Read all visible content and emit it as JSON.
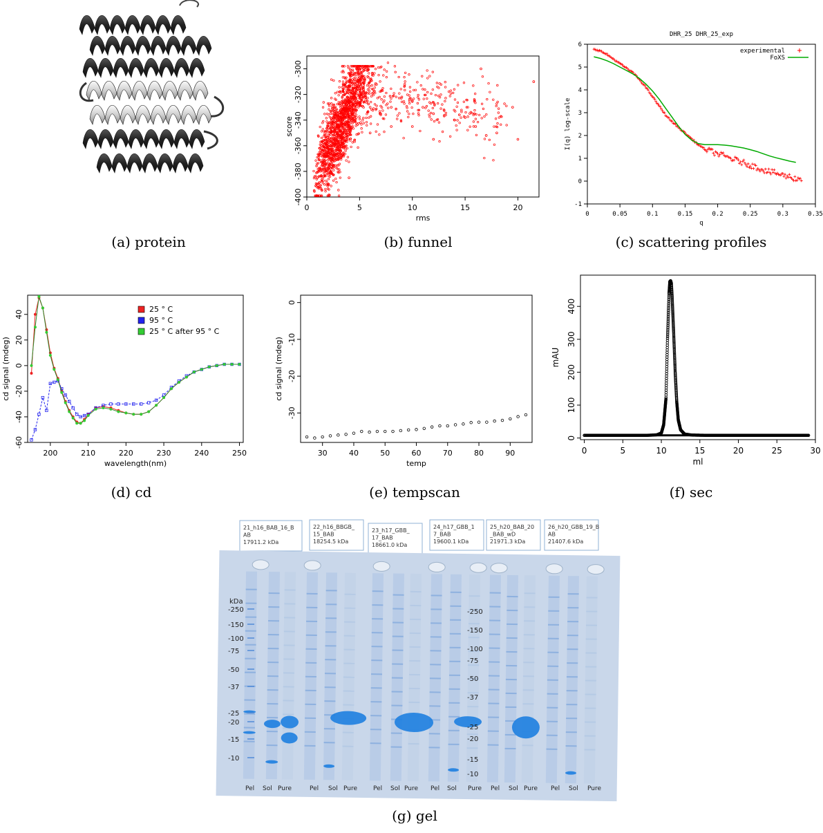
{
  "captions": {
    "a": "(a) protein",
    "b": "(b) funnel",
    "c": "(c) scattering profiles",
    "d": "(d) cd",
    "e": "(e) tempscan",
    "f": "(f) sec",
    "g": "(g) gel"
  },
  "colors": {
    "funnel_points": "#ff0000",
    "experimental": "#ff0000",
    "foxs": "#00aa00",
    "cd_25": "#ee2222",
    "cd_95": "#2222ee",
    "cd_25_after": "#33cc33",
    "gel_bg": "#c9d7ea",
    "gel_band": "#1e7fe0"
  },
  "chart_data": [
    {
      "id": "funnel",
      "type": "scatter",
      "xlabel": "rms",
      "ylabel": "score",
      "xlim": [
        0,
        22
      ],
      "ylim": [
        -400,
        -290
      ],
      "xticks": [
        0,
        5,
        10,
        15,
        20
      ],
      "yticks": [
        -400,
        -380,
        -360,
        -340,
        -320,
        -300
      ],
      "approx_points": [
        [
          0.7,
          -395
        ],
        [
          1,
          -385
        ],
        [
          1.5,
          -375
        ],
        [
          2,
          -365
        ],
        [
          2.5,
          -355
        ],
        [
          3,
          -345
        ],
        [
          3.5,
          -335
        ],
        [
          4,
          -325
        ],
        [
          4.5,
          -318
        ],
        [
          5,
          -312
        ],
        [
          5.5,
          -320
        ],
        [
          6,
          -330
        ],
        [
          7,
          -335
        ],
        [
          8,
          -330
        ],
        [
          9,
          -322
        ],
        [
          10,
          -325
        ],
        [
          11,
          -330
        ],
        [
          12,
          -335
        ],
        [
          13,
          -332
        ],
        [
          14,
          -340
        ],
        [
          15,
          -338
        ],
        [
          16,
          -345
        ],
        [
          17,
          -352
        ],
        [
          18,
          -350
        ],
        [
          16.5,
          -300
        ],
        [
          19.5,
          -330
        ],
        [
          21.5,
          -310
        ],
        [
          20,
          -355
        ],
        [
          5,
          -300
        ],
        [
          3,
          -370
        ],
        [
          2,
          -390
        ],
        [
          6,
          -350
        ],
        [
          8,
          -345
        ],
        [
          10,
          -345
        ],
        [
          12,
          -355
        ],
        [
          4,
          -385
        ]
      ]
    },
    {
      "id": "scattering",
      "type": "line",
      "title": "DHR_25 DHR_25_exp",
      "xlabel": "q",
      "ylabel": "I(q) log-scale",
      "xlim": [
        0,
        0.35
      ],
      "ylim": [
        -1,
        6
      ],
      "xticks": [
        0,
        0.05,
        0.1,
        0.15,
        0.2,
        0.25,
        0.3,
        0.35
      ],
      "yticks": [
        -1,
        0,
        1,
        2,
        3,
        4,
        5,
        6
      ],
      "legend": "top-right",
      "series": [
        {
          "name": "experimental",
          "marker": "+",
          "x": [
            0.01,
            0.02,
            0.03,
            0.04,
            0.05,
            0.06,
            0.07,
            0.08,
            0.09,
            0.1,
            0.11,
            0.12,
            0.13,
            0.14,
            0.15,
            0.16,
            0.17,
            0.18,
            0.19,
            0.2,
            0.21,
            0.22,
            0.23,
            0.24,
            0.25,
            0.26,
            0.27,
            0.28,
            0.29,
            0.3,
            0.31,
            0.32
          ],
          "y": [
            5.8,
            5.7,
            5.55,
            5.35,
            5.15,
            4.95,
            4.75,
            4.45,
            4.1,
            3.7,
            3.3,
            2.9,
            2.6,
            2.35,
            2.1,
            1.85,
            1.6,
            1.4,
            1.3,
            1.2,
            1.1,
            1.0,
            0.9,
            0.8,
            0.7,
            0.6,
            0.5,
            0.4,
            0.35,
            0.25,
            0.2,
            0.1
          ]
        },
        {
          "name": "FoXS",
          "marker": "line",
          "x": [
            0.01,
            0.02,
            0.03,
            0.04,
            0.05,
            0.06,
            0.07,
            0.08,
            0.09,
            0.1,
            0.11,
            0.12,
            0.13,
            0.14,
            0.15,
            0.16,
            0.17,
            0.18,
            0.19,
            0.2,
            0.21,
            0.22,
            0.23,
            0.24,
            0.25,
            0.26,
            0.27,
            0.28,
            0.29,
            0.3,
            0.31,
            0.32
          ],
          "y": [
            5.45,
            5.38,
            5.28,
            5.15,
            5.0,
            4.85,
            4.7,
            4.5,
            4.25,
            3.95,
            3.6,
            3.2,
            2.8,
            2.4,
            2.05,
            1.8,
            1.65,
            1.6,
            1.6,
            1.6,
            1.58,
            1.55,
            1.5,
            1.45,
            1.38,
            1.3,
            1.2,
            1.1,
            1.02,
            0.95,
            0.88,
            0.82
          ]
        }
      ]
    },
    {
      "id": "cd",
      "type": "line",
      "xlabel": "wavelength(nm)",
      "ylabel": "cd signal (mdeg)",
      "xlim": [
        194,
        251
      ],
      "ylim": [
        -60,
        55
      ],
      "xticks": [
        200,
        210,
        220,
        230,
        240,
        250
      ],
      "yticks": [
        -60,
        -40,
        -20,
        0,
        20,
        40
      ],
      "legend": "top-right",
      "series": [
        {
          "name": "25 ° C",
          "x": [
            195,
            196,
            197,
            198,
            199,
            200,
            201,
            202,
            203,
            204,
            205,
            206,
            207,
            208,
            209,
            210,
            212,
            214,
            216,
            218,
            220,
            222,
            224,
            226,
            228,
            230,
            232,
            234,
            236,
            238,
            240,
            242,
            244,
            246,
            248,
            250
          ],
          "y": [
            -6,
            40,
            53,
            45,
            28,
            10,
            -2,
            -10,
            -20,
            -28,
            -35,
            -40,
            -44,
            -45,
            -42,
            -38,
            -33,
            -32,
            -33,
            -35,
            -37,
            -38,
            -38,
            -36,
            -31,
            -25,
            -18,
            -13,
            -9,
            -5,
            -3,
            -1,
            0,
            1,
            1,
            1
          ]
        },
        {
          "name": "95 ° C",
          "x": [
            195,
            196,
            197,
            198,
            199,
            200,
            201,
            202,
            203,
            204,
            205,
            206,
            207,
            208,
            209,
            210,
            212,
            214,
            216,
            218,
            220,
            222,
            224,
            226,
            228,
            230,
            232,
            234,
            236,
            238,
            240,
            242,
            244,
            246,
            248,
            250
          ],
          "y": [
            -58,
            -50,
            -38,
            -25,
            -35,
            -14,
            -13,
            -12,
            -18,
            -23,
            -28,
            -33,
            -38,
            -40,
            -39,
            -38,
            -33,
            -31,
            -30,
            -30,
            -30,
            -30,
            -30,
            -29,
            -27,
            -23,
            -17,
            -12,
            -8,
            -5,
            -3,
            -1,
            0,
            1,
            1,
            1
          ]
        },
        {
          "name": "25 ° C after 95 ° C",
          "x": [
            195,
            196,
            197,
            198,
            199,
            200,
            201,
            202,
            203,
            204,
            205,
            206,
            207,
            208,
            209,
            210,
            212,
            214,
            216,
            218,
            220,
            222,
            224,
            226,
            228,
            230,
            232,
            234,
            236,
            238,
            240,
            242,
            244,
            246,
            248,
            250
          ],
          "y": [
            0,
            30,
            54,
            45,
            26,
            8,
            -3,
            -11,
            -21,
            -29,
            -36,
            -41,
            -45,
            -45,
            -43,
            -39,
            -34,
            -33,
            -34,
            -36,
            -37,
            -38,
            -38,
            -36,
            -31,
            -25,
            -18,
            -13,
            -9,
            -5,
            -3,
            -1,
            0,
            1,
            1,
            1
          ]
        }
      ]
    },
    {
      "id": "tempscan",
      "type": "scatter",
      "xlabel": "temp",
      "ylabel": "cd signal (mdeg)",
      "xlim": [
        23,
        97
      ],
      "ylim": [
        -38,
        2
      ],
      "xticks": [
        30,
        40,
        50,
        60,
        70,
        80,
        90
      ],
      "yticks": [
        0,
        -10,
        -20,
        -30
      ],
      "x": [
        25,
        27.5,
        30,
        32.5,
        35,
        37.5,
        40,
        42.5,
        45,
        47.5,
        50,
        52.5,
        55,
        57.5,
        60,
        62.5,
        65,
        67.5,
        70,
        72.5,
        75,
        77.5,
        80,
        82.5,
        85,
        87.5,
        90,
        92.5,
        95
      ],
      "y": [
        -36.5,
        -36.8,
        -36.5,
        -36.2,
        -36.0,
        -35.8,
        -35.5,
        -35.0,
        -35.2,
        -35.0,
        -35.0,
        -35.0,
        -34.8,
        -34.6,
        -34.5,
        -34.2,
        -33.8,
        -33.5,
        -33.5,
        -33.2,
        -33.0,
        -32.6,
        -32.5,
        -32.5,
        -32.2,
        -32.0,
        -31.6,
        -31.0,
        -30.5
      ]
    },
    {
      "id": "sec",
      "type": "line",
      "xlabel": "ml",
      "ylabel": "mAU",
      "xlim": [
        -0.5,
        30
      ],
      "ylim": [
        -5,
        495
      ],
      "xticks": [
        0,
        5,
        10,
        15,
        20,
        25,
        30
      ],
      "yticks": [
        0,
        100,
        200,
        300,
        400
      ],
      "x": [
        0,
        2,
        4,
        6,
        8,
        9,
        9.5,
        10,
        10.3,
        10.6,
        10.8,
        11,
        11.1,
        11.2,
        11.3,
        11.4,
        11.6,
        11.8,
        12,
        12.2,
        12.5,
        13,
        14,
        16,
        20,
        25,
        29
      ],
      "y": [
        8,
        8,
        8,
        8,
        8,
        9,
        10,
        15,
        40,
        120,
        300,
        440,
        475,
        478,
        470,
        430,
        320,
        200,
        110,
        55,
        25,
        12,
        9,
        8,
        8,
        8,
        8
      ]
    }
  ],
  "gel": {
    "boxes": [
      {
        "lines": [
          "21_h16_BAB_16_B",
          "AB",
          "17911.2 kDa"
        ]
      },
      {
        "lines": [
          "22_h16_BBGB_",
          "15_BAB",
          "18254.5 kDa"
        ]
      },
      {
        "lines": [
          "23_h17_GBB_",
          "17_BAB",
          "18661.0 kDa"
        ]
      },
      {
        "lines": [
          "24_h17_GBB_1",
          "7_BAB",
          "19600.1 kDa"
        ]
      },
      {
        "lines": [
          "25_h20_BAB_20",
          "_BAB_wD",
          "21971.3 kDa"
        ]
      },
      {
        "lines": [
          "26_h20_GBB_19_B",
          "AB",
          "21407.6 kDa"
        ]
      }
    ],
    "ladder_left": {
      "unit": "kDa",
      "marks": [
        "-250",
        "-150",
        "-100",
        "-75",
        "-50",
        "-37",
        "-25",
        "-20",
        "-15",
        "-10"
      ]
    },
    "ladder_right": {
      "marks": [
        "-250",
        "-150",
        "-100",
        "-75",
        "-50",
        "-37",
        "-25",
        "-20",
        "-15",
        "-10"
      ]
    },
    "lane_labels": [
      "Pel",
      "Sol",
      "Pure",
      "Pel",
      "Sol",
      "Pure",
      "Pel",
      "Sol",
      "Pure",
      "Pel",
      "Sol",
      "Pure",
      "Pel",
      "Sol",
      "Pure",
      "Pel",
      "Sol",
      "Pure"
    ]
  }
}
